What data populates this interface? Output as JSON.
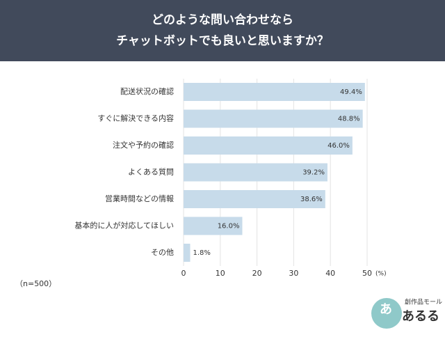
{
  "chart_data": {
    "type": "barh",
    "title_lines": [
      "どのような問い合わせなら",
      "チャットボットでも良いと思いますか？"
    ],
    "categories": [
      "配送状況の確認",
      "すぐに解決できる内容",
      "注文や予約の確認",
      "よくある質問",
      "営業時間などの情報",
      "基本的に人が対応してほしい",
      "その他"
    ],
    "values": [
      49.4,
      48.8,
      46.0,
      39.2,
      38.6,
      16.0,
      1.8
    ],
    "value_labels": [
      "49.4%",
      "48.8%",
      "46.0%",
      "39.2%",
      "38.6%",
      "16.0%",
      "1.8%"
    ],
    "color": "#c7dbea",
    "xlim": [
      0,
      50
    ],
    "xticks": [
      0,
      10,
      20,
      30,
      40,
      50
    ],
    "x_unit": "(%)",
    "grid": true
  },
  "note": "（n=500）",
  "logo": {
    "small": "創作品モール",
    "main": "あるる",
    "badge": "あ"
  }
}
